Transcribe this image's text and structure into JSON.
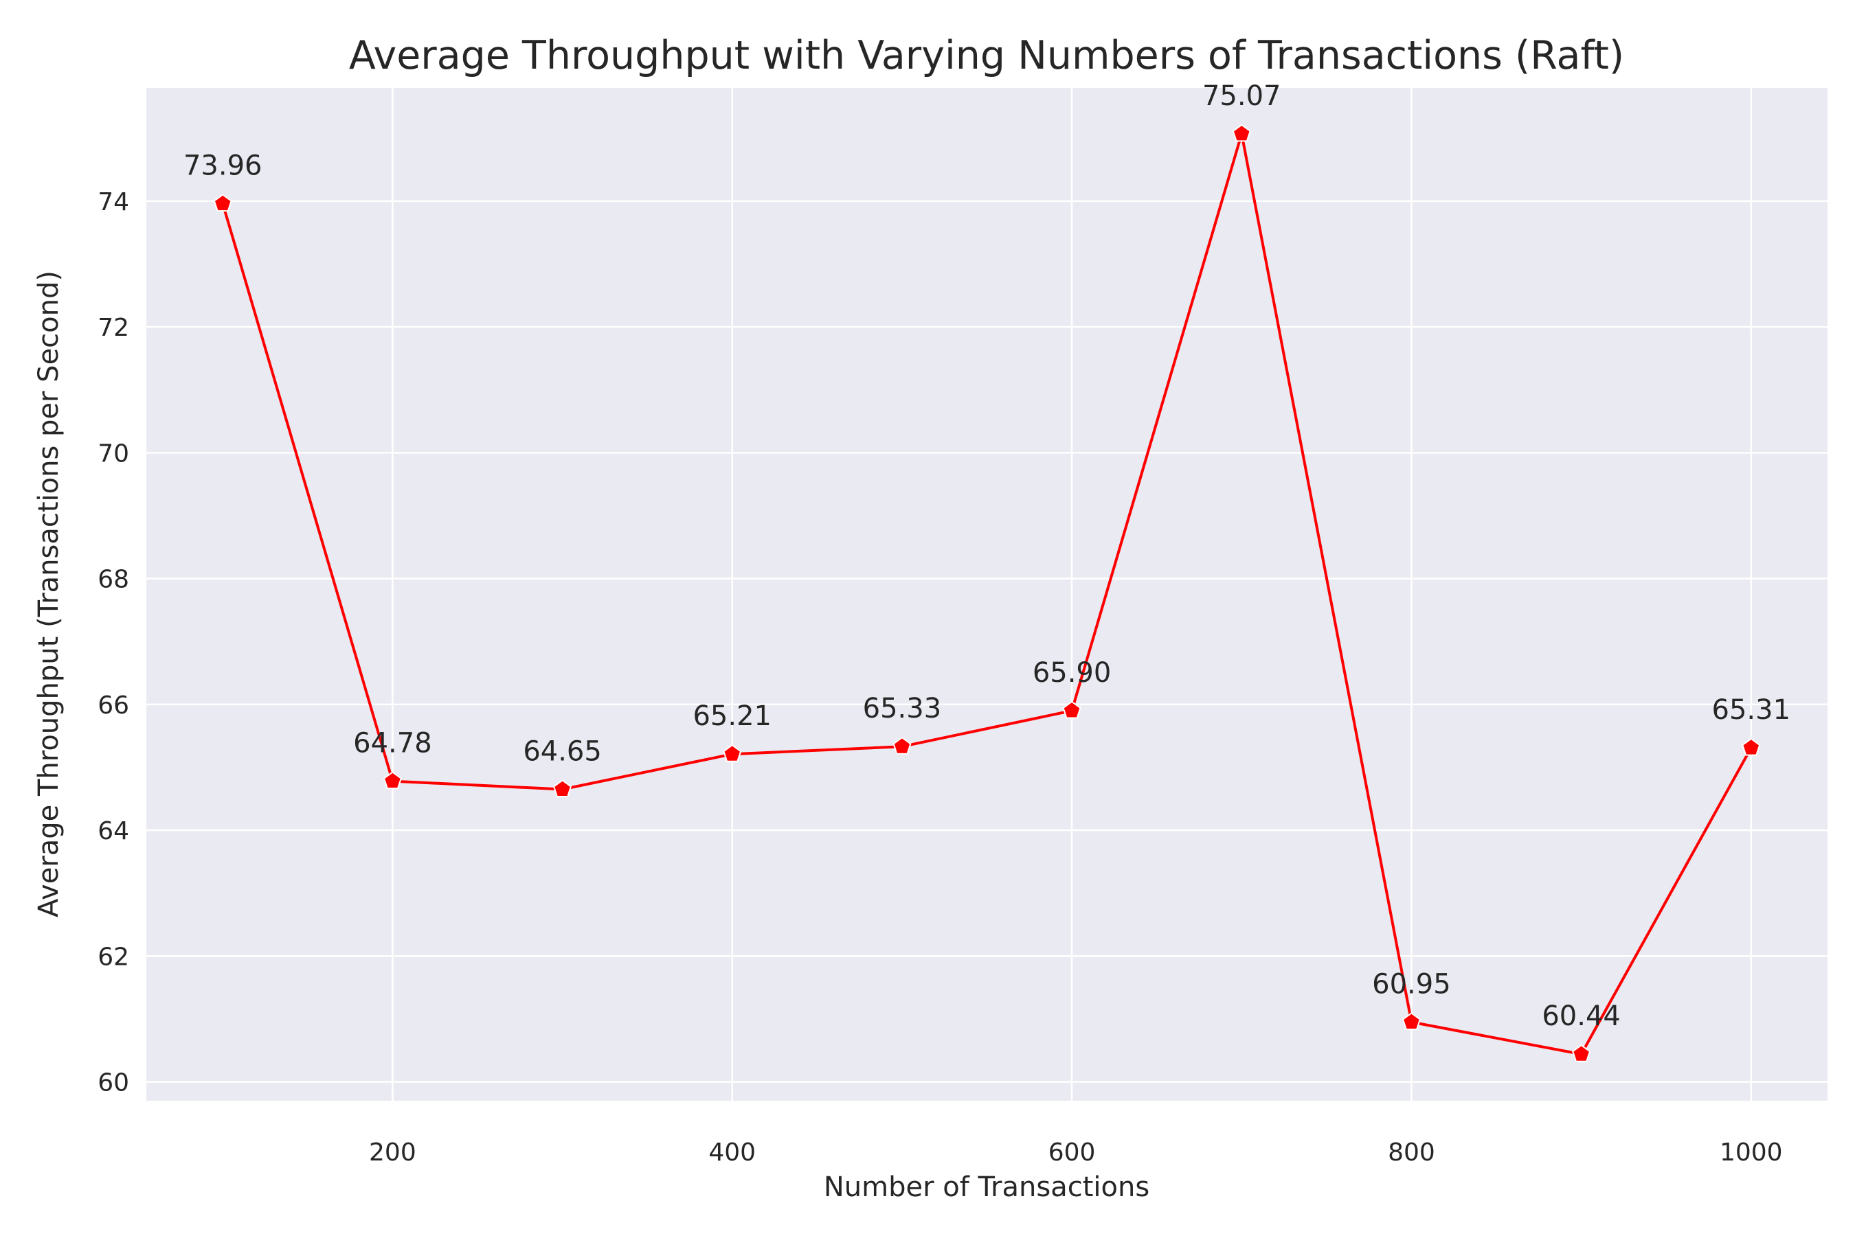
{
  "chart_data": {
    "type": "line",
    "title": "Average Throughput with Varying Numbers of Transactions (Raft)",
    "xlabel": "Number of Transactions",
    "ylabel": "Average Throughput (Transactions per Second)",
    "x": [
      100,
      200,
      300,
      400,
      500,
      600,
      700,
      800,
      900,
      1000
    ],
    "values": [
      73.96,
      64.78,
      64.65,
      65.21,
      65.33,
      65.9,
      75.07,
      60.95,
      60.44,
      65.31
    ],
    "data_labels": [
      "73.96",
      "64.78",
      "64.65",
      "65.21",
      "65.33",
      "65.90",
      "75.07",
      "60.95",
      "60.44",
      "65.31"
    ],
    "xlim": [
      55,
      1045
    ],
    "ylim": [
      59.7,
      75.8
    ],
    "x_ticks": [
      200,
      400,
      600,
      800,
      1000
    ],
    "y_ticks": [
      60,
      62,
      64,
      66,
      68,
      70,
      72,
      74
    ],
    "grid": true,
    "marker": "pentagon",
    "colors": {
      "line": "#ff0000",
      "background": "#eaeaf2",
      "grid": "#ffffff"
    }
  }
}
